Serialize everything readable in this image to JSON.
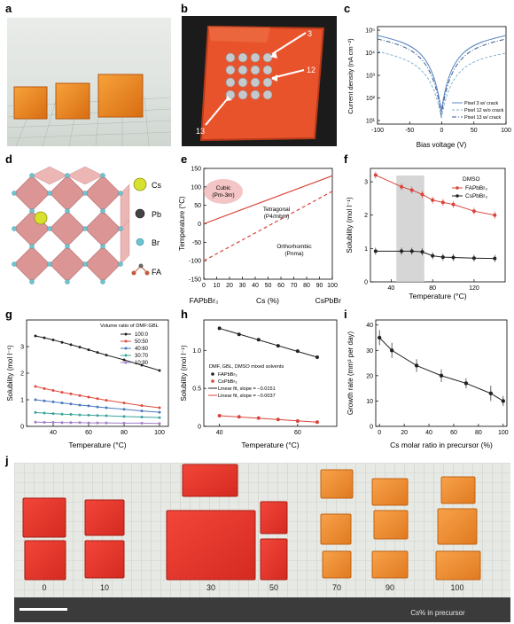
{
  "labels": {
    "a": "a",
    "b": "b",
    "c": "c",
    "d": "d",
    "e": "e",
    "f": "f",
    "g": "g",
    "h": "h",
    "i": "i",
    "j": "j"
  },
  "panel_b": {
    "pixel_labels": [
      "3",
      "12",
      "13"
    ]
  },
  "panel_c": {
    "chart_data": {
      "type": "line",
      "xlabel": "Bias voltage (V)",
      "ylabel": "Current density (nA cm⁻²)",
      "xlim": [
        -100,
        100
      ],
      "xticks": [
        "-100",
        "-50",
        "0",
        "50",
        "100"
      ],
      "yticks": [
        "10¹",
        "10²",
        "10³",
        "10⁴",
        "10⁵"
      ],
      "ylog": true,
      "series": [
        {
          "name": "Pixel 3 w/ crack",
          "color": "#5b87c5"
        },
        {
          "name": "Pixel 12 w/o crack",
          "color": "#7fb0d0"
        },
        {
          "name": "Pixel 13 w/ crack",
          "color": "#3a5a8c"
        }
      ]
    }
  },
  "panel_d": {
    "legend": [
      "Cs",
      "Pb",
      "Br",
      "FA"
    ]
  },
  "panel_e": {
    "chart_data": {
      "type": "line",
      "ylabel": "Temperature (°C)",
      "xlabel": "Cs (%)",
      "xlim": [
        0,
        100
      ],
      "ylim": [
        -150,
        150
      ],
      "xticks": [
        "0",
        "10",
        "20",
        "30",
        "40",
        "50",
        "60",
        "70",
        "80",
        "90",
        "100"
      ],
      "yticks": [
        "-150",
        "-100",
        "-50",
        "0",
        "50",
        "100",
        "150"
      ],
      "x_end_labels": [
        "FAPbBr₃",
        "CsPbBr₃"
      ],
      "phases": [
        "Cubic",
        "(Pm-3m)",
        "Tetragonal",
        "(P4/mbm)",
        "Orthorhombic",
        "(Pnma)"
      ],
      "series": [
        {
          "style": "solid",
          "x": [
            0,
            100
          ],
          "y": [
            0,
            130
          ]
        },
        {
          "style": "dashed",
          "x": [
            0,
            100
          ],
          "y": [
            -100,
            88
          ]
        }
      ]
    }
  },
  "panel_f": {
    "chart_data": {
      "type": "line",
      "xlabel": "Temperature (°C)",
      "ylabel": "Solubility (mol l⁻¹)",
      "xlim": [
        20,
        150
      ],
      "ylim": [
        0,
        3.4
      ],
      "xticks": [
        "40",
        "80",
        "120"
      ],
      "yticks": [
        "0",
        "1",
        "2",
        "3"
      ],
      "legend_title": "DMSO",
      "series": [
        {
          "name": "FAPbBr₃",
          "color": "#d9443a",
          "x": [
            25,
            50,
            60,
            70,
            80,
            90,
            100,
            120,
            140
          ],
          "y": [
            3.2,
            2.85,
            2.75,
            2.62,
            2.45,
            2.38,
            2.32,
            2.12,
            2.0
          ]
        },
        {
          "name": "CsPbBr₃",
          "color": "#222222",
          "x": [
            25,
            50,
            60,
            70,
            80,
            90,
            100,
            120,
            140
          ],
          "y": [
            0.92,
            0.92,
            0.92,
            0.9,
            0.78,
            0.74,
            0.73,
            0.71,
            0.7
          ]
        }
      ]
    }
  },
  "panel_g": {
    "chart_data": {
      "type": "line",
      "xlabel": "Temperature (°C)",
      "ylabel": "Solubility (mol l⁻¹)",
      "xlim": [
        25,
        105
      ],
      "ylim": [
        0,
        4
      ],
      "xticks": [
        "40",
        "60",
        "80",
        "100"
      ],
      "yticks": [
        "0",
        "1",
        "2",
        "3"
      ],
      "legend_title": "Volume ratio of DMF:GBL",
      "x": [
        30,
        35,
        40,
        45,
        50,
        55,
        60,
        65,
        70,
        80,
        90,
        100
      ],
      "series": [
        {
          "name": "100:0",
          "color": "#222222",
          "y": [
            3.4,
            3.33,
            3.25,
            3.16,
            3.07,
            2.98,
            2.88,
            2.78,
            2.68,
            2.5,
            2.3,
            2.1
          ]
        },
        {
          "name": "50:50",
          "color": "#e0493e",
          "y": [
            1.5,
            1.42,
            1.35,
            1.28,
            1.22,
            1.16,
            1.1,
            1.04,
            0.98,
            0.88,
            0.78,
            0.7
          ]
        },
        {
          "name": "40:60",
          "color": "#4a78c0",
          "y": [
            1.0,
            0.96,
            0.92,
            0.88,
            0.84,
            0.8,
            0.77,
            0.73,
            0.7,
            0.64,
            0.58,
            0.53
          ]
        },
        {
          "name": "30:70",
          "color": "#3aa39a",
          "y": [
            0.52,
            0.5,
            0.48,
            0.46,
            0.45,
            0.43,
            0.42,
            0.41,
            0.4,
            0.37,
            0.35,
            0.33
          ]
        },
        {
          "name": "10:90",
          "color": "#a07cc7",
          "y": [
            0.16,
            0.15,
            0.15,
            0.14,
            0.14,
            0.14,
            0.13,
            0.13,
            0.13,
            0.12,
            0.12,
            0.11
          ]
        }
      ]
    }
  },
  "panel_h": {
    "chart_data": {
      "type": "scatter",
      "xlabel": "Temperature (°C)",
      "ylabel": "Solubility (mol l⁻¹)",
      "xlim": [
        36,
        70
      ],
      "ylim": [
        0,
        1.4
      ],
      "xticks": [
        "40",
        "60"
      ],
      "yticks": [
        "0",
        "0.5",
        "1.0"
      ],
      "legend_title": "DMF, GBL, DMSO mixed solvents",
      "series": [
        {
          "name": "FAPbBr₃",
          "color": "#222222",
          "x": [
            40,
            45,
            50,
            55,
            60,
            65
          ],
          "y": [
            1.29,
            1.21,
            1.14,
            1.06,
            0.99,
            0.91
          ]
        },
        {
          "name": "CsPbBr₃",
          "color": "#d9443a",
          "x": [
            40,
            45,
            50,
            55,
            60,
            65
          ],
          "y": [
            0.14,
            0.125,
            0.11,
            0.09,
            0.07,
            0.055
          ]
        }
      ],
      "fits": [
        {
          "name": "Linear fit, slope = −0.0151",
          "color": "#222222"
        },
        {
          "name": "Linear fit, slope = −0.0037",
          "color": "#d9443a"
        }
      ]
    }
  },
  "panel_i": {
    "chart_data": {
      "type": "line",
      "xlabel": "Cs molar ratio in precursor (%)",
      "ylabel": "Growth rate (mm³ per day)",
      "xlim": [
        -3,
        103
      ],
      "ylim": [
        0,
        42
      ],
      "xticks": [
        "0",
        "20",
        "40",
        "60",
        "80",
        "100"
      ],
      "yticks": [
        "0",
        "10",
        "20",
        "30",
        "40"
      ],
      "x": [
        0,
        10,
        30,
        50,
        70,
        90,
        100
      ],
      "y": [
        35,
        30,
        24,
        20,
        17,
        13,
        10
      ],
      "err": [
        3,
        3,
        2.5,
        2.5,
        2,
        3,
        2
      ]
    }
  },
  "panel_j": {
    "ratios": [
      "0",
      "10",
      "30",
      "50",
      "70",
      "90",
      "100"
    ],
    "caption": "Cs% in precursor"
  }
}
